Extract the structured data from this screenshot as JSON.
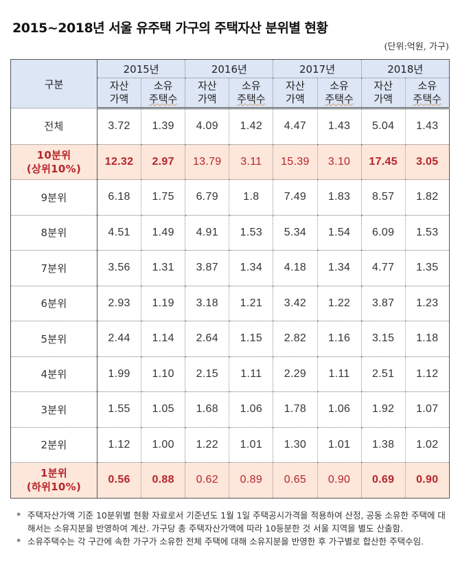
{
  "title": "2015~2018년 서울 유주택 가구의 주택자산 분위별 현황",
  "unit": "(단위:억원, 가구)",
  "table": {
    "label_header": "구분",
    "years": [
      "2015년",
      "2016년",
      "2017년",
      "2018년"
    ],
    "sub_headers": [
      {
        "line1": "자산",
        "line2": "가액"
      },
      {
        "line1": "소유",
        "line2": "주택수"
      }
    ],
    "rows": [
      {
        "label": "전체",
        "label2": "",
        "highlight": false,
        "values": [
          "3.72",
          "1.39",
          "4.09",
          "1.42",
          "4.47",
          "1.43",
          "5.04",
          "1.43"
        ]
      },
      {
        "label": "10분위",
        "label2": "(상위10%)",
        "highlight": true,
        "values": [
          "12.32",
          "2.97",
          "13.79",
          "3.11",
          "15.39",
          "3.10",
          "17.45",
          "3.05"
        ]
      },
      {
        "label": "9분위",
        "label2": "",
        "highlight": false,
        "values": [
          "6.18",
          "1.75",
          "6.79",
          "1.8",
          "7.49",
          "1.83",
          "8.57",
          "1.82"
        ]
      },
      {
        "label": "8분위",
        "label2": "",
        "highlight": false,
        "values": [
          "4.51",
          "1.49",
          "4.91",
          "1.53",
          "5.34",
          "1.54",
          "6.09",
          "1.53"
        ]
      },
      {
        "label": "7분위",
        "label2": "",
        "highlight": false,
        "values": [
          "3.56",
          "1.31",
          "3.87",
          "1.34",
          "4.18",
          "1.34",
          "4.77",
          "1.35"
        ]
      },
      {
        "label": "6분위",
        "label2": "",
        "highlight": false,
        "values": [
          "2.93",
          "1.19",
          "3.18",
          "1.21",
          "3.42",
          "1.22",
          "3.87",
          "1.23"
        ]
      },
      {
        "label": "5분위",
        "label2": "",
        "highlight": false,
        "values": [
          "2.44",
          "1.14",
          "2.64",
          "1.15",
          "2.82",
          "1.16",
          "3.15",
          "1.18"
        ]
      },
      {
        "label": "4분위",
        "label2": "",
        "highlight": false,
        "values": [
          "1.99",
          "1.10",
          "2.15",
          "1.11",
          "2.29",
          "1.11",
          "2.51",
          "1.12"
        ]
      },
      {
        "label": "3분위",
        "label2": "",
        "highlight": false,
        "values": [
          "1.55",
          "1.05",
          "1.68",
          "1.06",
          "1.78",
          "1.06",
          "1.92",
          "1.07"
        ]
      },
      {
        "label": "2분위",
        "label2": "",
        "highlight": false,
        "values": [
          "1.12",
          "1.00",
          "1.22",
          "1.01",
          "1.30",
          "1.01",
          "1.38",
          "1.02"
        ]
      },
      {
        "label": "1분위",
        "label2": "(하위10%)",
        "highlight": true,
        "values": [
          "0.56",
          "0.88",
          "0.62",
          "0.89",
          "0.65",
          "0.90",
          "0.69",
          "0.90"
        ]
      }
    ]
  },
  "notes": [
    {
      "bullet": "*",
      "text": "주택자산가액 기준 10분위별 현황 자료로서 기준년도 1월 1일 주택공시가격을 적용하여 산정, 공동 소유한 주택에 대해서는 소유지분을 반영하여 계산. 가구당 총 주택자산가액에 따라 10등분한 것 서울 지역을 별도 산출함."
    },
    {
      "bullet": "*",
      "text": "소유주택수는 각 구간에 속한 가구가 소유한 전체 주택에 대해 소유지분을 반영한 후 가구별로 합산한 주택수임."
    }
  ],
  "colors": {
    "header_bg": "#dde6f5",
    "highlight_bg": "#fde6da",
    "highlight_text": "#b4262b"
  }
}
